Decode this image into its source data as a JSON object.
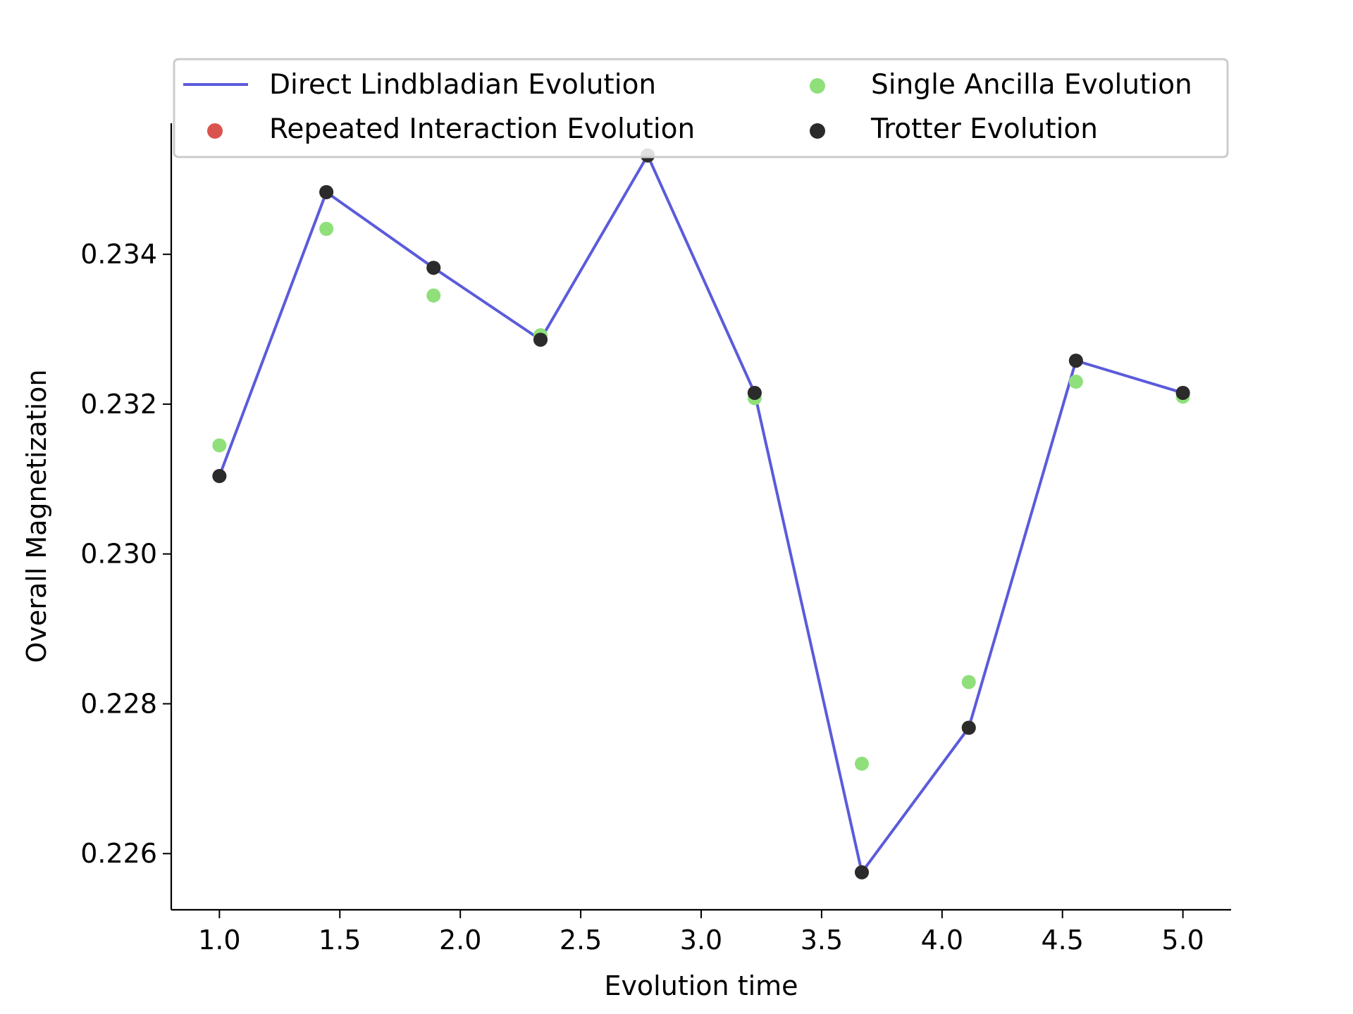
{
  "chart_data": {
    "type": "line",
    "title": "",
    "xlabel": "Evolution time",
    "ylabel": "Overall Magnetization",
    "xlim": [
      0.8,
      5.2
    ],
    "ylim": [
      0.22525,
      0.23575
    ],
    "xticks": [
      1.0,
      1.5,
      2.0,
      2.5,
      3.0,
      3.5,
      4.0,
      4.5,
      5.0
    ],
    "xtick_labels": [
      "1.0",
      "1.5",
      "2.0",
      "2.5",
      "3.0",
      "3.5",
      "4.0",
      "4.5",
      "5.0"
    ],
    "yticks": [
      0.226,
      0.228,
      0.23,
      0.232,
      0.234
    ],
    "ytick_labels": [
      "0.226",
      "0.228",
      "0.230",
      "0.232",
      "0.234"
    ],
    "grid": false,
    "legend_placement": "top",
    "x": [
      1.0,
      1.444,
      1.889,
      2.333,
      2.778,
      3.222,
      3.667,
      4.111,
      4.556,
      5.0
    ],
    "series": [
      {
        "name": "Direct Lindbladian Evolution",
        "kind": "line",
        "color": "#5b5bdb",
        "values": [
          0.23104,
          0.23483,
          0.23382,
          0.23286,
          0.23532,
          0.23215,
          0.22575,
          0.22768,
          0.23258,
          0.23215
        ]
      },
      {
        "name": "Repeated Interaction Evolution",
        "kind": "scatter",
        "color": "#d9534f",
        "values": [
          0.23104,
          0.23483,
          0.23382,
          0.23286,
          0.23532,
          0.23215,
          0.22575,
          0.22768,
          0.23258,
          0.23215
        ]
      },
      {
        "name": "Single Ancilla Evolution",
        "kind": "scatter",
        "color": "#8fe07a",
        "values": [
          0.23145,
          0.23434,
          0.23345,
          0.23292,
          0.23532,
          0.23208,
          0.2272,
          0.22829,
          0.2323,
          0.2321
        ]
      },
      {
        "name": "Trotter Evolution",
        "kind": "scatter",
        "color": "#2b2b2b",
        "values": [
          0.23104,
          0.23483,
          0.23382,
          0.23286,
          0.23532,
          0.23215,
          0.22575,
          0.22768,
          0.23258,
          0.23215
        ]
      }
    ]
  }
}
